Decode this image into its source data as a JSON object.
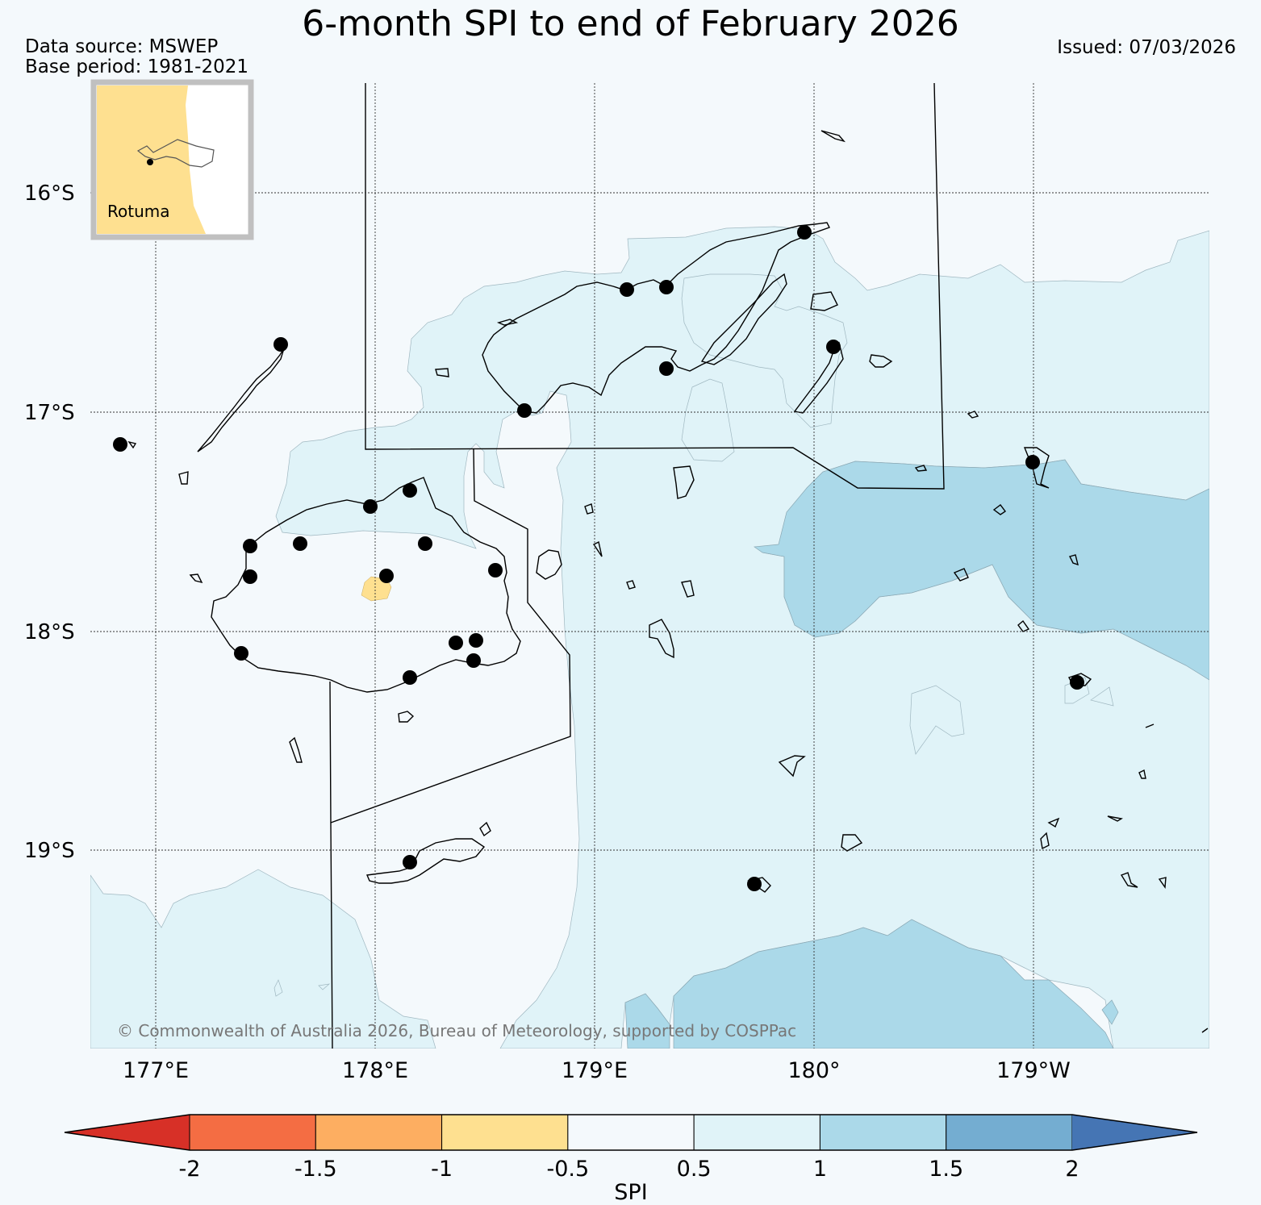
{
  "title": "6-month SPI to end of February 2026",
  "data_source": "Data source: MSWEP",
  "base_period": "Base period: 1981-2021",
  "issued": "Issued: 07/03/2026",
  "inset_label": "Rotuma",
  "copyright": "© Commonwealth of Australia 2026, Bureau of Meteorology, supported by COSPPac",
  "lat_labels": [
    "16°S",
    "17°S",
    "18°S",
    "19°S"
  ],
  "lon_labels": [
    "177°E",
    "178°E",
    "179°E",
    "180°",
    "179°W"
  ],
  "colorbar": {
    "title": "SPI",
    "ticks": [
      "-2",
      "-1.5",
      "-1",
      "-0.5",
      "0.5",
      "1",
      "1.5",
      "2"
    ],
    "colors": [
      "#d73027",
      "#f46d43",
      "#fdae61",
      "#fee090",
      "#f4f9fc",
      "#e0f3f8",
      "#abd9e9",
      "#74add1",
      "#4575b4"
    ]
  },
  "colors": {
    "spi_0_5_to_1": "#e0f3f8",
    "spi_1_to_1_5": "#abd9e9",
    "spi_minus1_to_minus0_5": "#fee090",
    "background": "#f4f9fc"
  }
}
